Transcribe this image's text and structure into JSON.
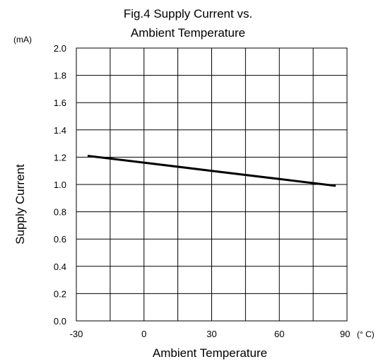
{
  "chart_data": {
    "type": "line",
    "title_lines": [
      "Fig.4 Supply Current vs.",
      "Ambient Temperature"
    ],
    "xlabel": "Ambient Temperature",
    "ylabel": "Supply Current",
    "x_unit": "(° C)",
    "y_unit": "(mA)",
    "xlim": [
      -30,
      90
    ],
    "ylim": [
      0.0,
      2.0
    ],
    "x_ticks": [
      -30,
      0,
      30,
      60,
      90
    ],
    "x_tick_labels": [
      "-30",
      "0",
      "30",
      "60",
      "90"
    ],
    "y_ticks": [
      0.0,
      0.2,
      0.4,
      0.6,
      0.8,
      1.0,
      1.2,
      1.4,
      1.6,
      1.8,
      2.0
    ],
    "y_tick_labels": [
      "0.0",
      "0.2",
      "0.4",
      "0.6",
      "0.8",
      "1.0",
      "1.2",
      "1.4",
      "1.6",
      "1.8",
      "2.0"
    ],
    "x_minor_step": 15,
    "grid": true,
    "legend": "none",
    "series": [
      {
        "x": [
          -25,
          0,
          30,
          60,
          85
        ],
        "y": [
          1.21,
          1.16,
          1.1,
          1.04,
          0.99
        ],
        "color": "#000000"
      }
    ]
  }
}
